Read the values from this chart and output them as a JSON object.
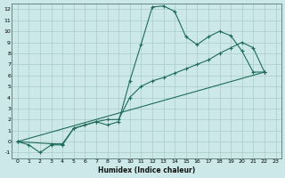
{
  "xlabel": "Humidex (Indice chaleur)",
  "background_color": "#cce8e8",
  "grid_color": "#aacccc",
  "line_color": "#1e6b5a",
  "xlim": [
    -0.5,
    23.5
  ],
  "ylim": [
    -1.5,
    12.5
  ],
  "xticks": [
    0,
    1,
    2,
    3,
    4,
    5,
    6,
    7,
    8,
    9,
    10,
    11,
    12,
    13,
    14,
    15,
    16,
    17,
    18,
    19,
    20,
    21,
    22,
    23
  ],
  "yticks": [
    -1,
    0,
    1,
    2,
    3,
    4,
    5,
    6,
    7,
    8,
    9,
    10,
    11,
    12
  ],
  "line1_x": [
    0,
    1,
    2,
    3,
    4,
    5,
    6,
    7,
    8,
    9,
    10,
    11,
    12,
    13,
    14,
    15,
    16,
    17,
    18,
    19,
    20,
    21,
    22
  ],
  "line1_y": [
    0,
    -0.3,
    -1.0,
    -0.3,
    -0.3,
    1.2,
    1.5,
    1.8,
    1.5,
    1.8,
    5.5,
    8.8,
    12.2,
    12.3,
    11.8,
    9.5,
    8.8,
    9.5,
    10.0,
    9.6,
    8.2,
    6.3,
    6.3
  ],
  "line2_x": [
    0,
    3,
    4,
    5,
    6,
    7,
    8,
    9,
    10,
    11,
    12,
    13,
    14,
    15,
    16,
    17,
    18,
    19,
    20,
    21,
    22
  ],
  "line2_y": [
    0,
    -0.2,
    -0.2,
    1.2,
    1.5,
    1.8,
    2.0,
    2.0,
    4.0,
    5.0,
    5.5,
    5.8,
    6.2,
    6.6,
    7.0,
    7.4,
    8.0,
    8.5,
    9.0,
    8.5,
    6.3
  ],
  "line3_x": [
    0,
    22
  ],
  "line3_y": [
    0,
    6.3
  ],
  "figsize": [
    3.2,
    2.0
  ],
  "dpi": 100
}
